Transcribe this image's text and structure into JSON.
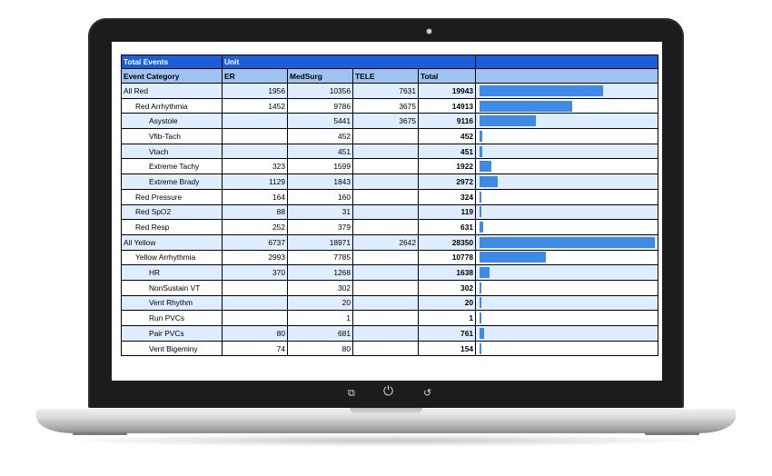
{
  "table": {
    "header1": {
      "col1": "Total Events",
      "col2": "Unit"
    },
    "header2": {
      "category": "Event Category",
      "er": "ER",
      "medsurg": "MedSurg",
      "tele": "TELE",
      "total": "Total"
    },
    "max_total": 28350,
    "rows": [
      {
        "category": "All Red",
        "level": 0,
        "er": "1956",
        "medsurg": "10356",
        "tele": "7631",
        "total": "19943"
      },
      {
        "category": "Red Arrhythmia",
        "level": 1,
        "er": "1452",
        "medsurg": "9786",
        "tele": "3675",
        "total": "14913"
      },
      {
        "category": "Asystole",
        "level": 2,
        "er": "",
        "medsurg": "5441",
        "tele": "3675",
        "total": "9116"
      },
      {
        "category": "Vfib-Tach",
        "level": 2,
        "er": "",
        "medsurg": "452",
        "tele": "",
        "total": "452"
      },
      {
        "category": "Vtach",
        "level": 2,
        "er": "",
        "medsurg": "451",
        "tele": "",
        "total": "451"
      },
      {
        "category": "Extreme Tachy",
        "level": 2,
        "er": "323",
        "medsurg": "1599",
        "tele": "",
        "total": "1922"
      },
      {
        "category": "Extreme Brady",
        "level": 2,
        "er": "1129",
        "medsurg": "1843",
        "tele": "",
        "total": "2972"
      },
      {
        "category": "Red Pressure",
        "level": 1,
        "er": "164",
        "medsurg": "160",
        "tele": "",
        "total": "324"
      },
      {
        "category": "Red SpO2",
        "level": 1,
        "er": "88",
        "medsurg": "31",
        "tele": "",
        "total": "119"
      },
      {
        "category": "Red Resp",
        "level": 1,
        "er": "252",
        "medsurg": "379",
        "tele": "",
        "total": "631"
      },
      {
        "category": "All Yellow",
        "level": 0,
        "er": "6737",
        "medsurg": "18971",
        "tele": "2642",
        "total": "28350"
      },
      {
        "category": "Yellow Arrhythmia",
        "level": 1,
        "er": "2993",
        "medsurg": "7785",
        "tele": "",
        "total": "10778"
      },
      {
        "category": "HR",
        "level": 2,
        "er": "370",
        "medsurg": "1268",
        "tele": "",
        "total": "1638"
      },
      {
        "category": "NonSustain VT",
        "level": 2,
        "er": "",
        "medsurg": "302",
        "tele": "",
        "total": "302"
      },
      {
        "category": "Vent Rhythm",
        "level": 2,
        "er": "",
        "medsurg": "20",
        "tele": "",
        "total": "20"
      },
      {
        "category": "Run PVCs",
        "level": 2,
        "er": "",
        "medsurg": "1",
        "tele": "",
        "total": "1"
      },
      {
        "category": "Pair PVCs",
        "level": 2,
        "er": "80",
        "medsurg": "681",
        "tele": "",
        "total": "761"
      },
      {
        "category": "Vent Bigeminy",
        "level": 2,
        "er": "74",
        "medsurg": "80",
        "tele": "",
        "total": "154"
      }
    ]
  },
  "device": {
    "buttons": [
      {
        "icon": "recent-apps-icon"
      },
      {
        "icon": "power-icon"
      },
      {
        "icon": "back-icon"
      }
    ]
  },
  "colors": {
    "header_dark": "#1a5fd8",
    "header_light": "#9fc3f0",
    "row_alt": "#deeeff",
    "bar": "#3d8ae8"
  }
}
